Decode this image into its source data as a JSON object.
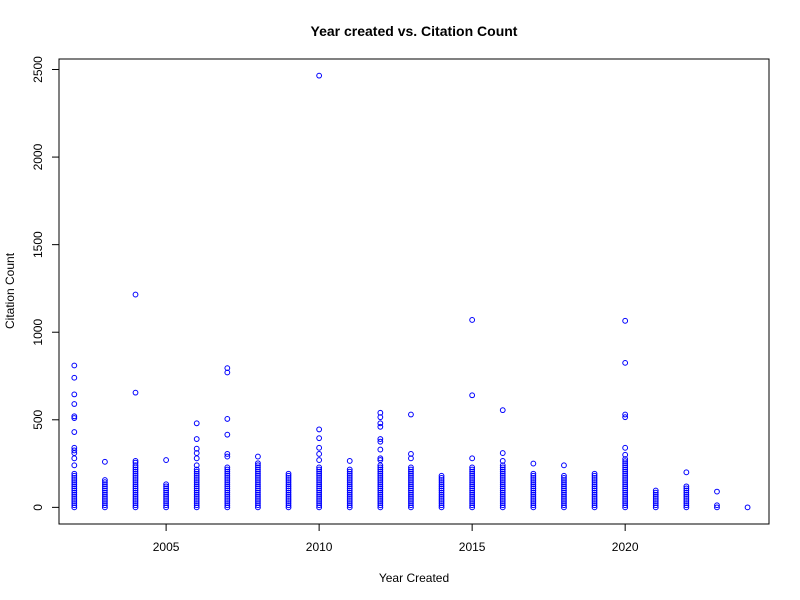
{
  "chart_data": {
    "type": "scatter",
    "title": "Year created vs. Citation Count",
    "xlabel": "Year Created",
    "ylabel": "Citation Count",
    "xlim": [
      2001.5,
      2024.7
    ],
    "ylim": [
      -95,
      2560
    ],
    "xticks": [
      2005,
      2010,
      2015,
      2020
    ],
    "yticks": [
      0,
      500,
      1000,
      1500,
      2000,
      2500
    ],
    "point_color": "#0000ff",
    "marker": "open-circle",
    "grid": false,
    "legend": "none",
    "columns": [
      {
        "x": 2002,
        "max": 200,
        "outliers": [
          810,
          740,
          645,
          590,
          520,
          510,
          430,
          340,
          325,
          310,
          280,
          240
        ]
      },
      {
        "x": 2003,
        "max": 160,
        "outliers": [
          260
        ]
      },
      {
        "x": 2004,
        "max": 240,
        "outliers": [
          1215,
          655,
          265,
          255
        ]
      },
      {
        "x": 2005,
        "max": 140,
        "outliers": [
          270
        ]
      },
      {
        "x": 2006,
        "max": 220,
        "outliers": [
          480,
          390,
          335,
          310,
          280,
          240
        ]
      },
      {
        "x": 2007,
        "max": 230,
        "outliers": [
          795,
          770,
          505,
          415,
          305,
          290
        ]
      },
      {
        "x": 2008,
        "max": 260,
        "outliers": [
          290
        ]
      },
      {
        "x": 2009,
        "max": 200,
        "outliers": []
      },
      {
        "x": 2010,
        "max": 230,
        "outliers": [
          2465,
          445,
          395,
          340,
          305,
          270
        ]
      },
      {
        "x": 2011,
        "max": 220,
        "outliers": [
          265
        ]
      },
      {
        "x": 2012,
        "max": 250,
        "outliers": [
          540,
          515,
          480,
          460,
          390,
          375,
          330,
          280,
          270
        ]
      },
      {
        "x": 2013,
        "max": 230,
        "outliers": [
          530,
          305,
          280
        ]
      },
      {
        "x": 2014,
        "max": 180,
        "outliers": []
      },
      {
        "x": 2015,
        "max": 230,
        "outliers": [
          1070,
          640,
          280
        ]
      },
      {
        "x": 2016,
        "max": 240,
        "outliers": [
          555,
          310,
          265
        ]
      },
      {
        "x": 2017,
        "max": 200,
        "outliers": [
          250
        ]
      },
      {
        "x": 2018,
        "max": 180,
        "outliers": [
          240
        ]
      },
      {
        "x": 2019,
        "max": 200,
        "outliers": []
      },
      {
        "x": 2020,
        "max": 280,
        "outliers": [
          1065,
          825,
          530,
          515,
          340,
          300
        ]
      },
      {
        "x": 2021,
        "max": 100,
        "outliers": []
      },
      {
        "x": 2022,
        "max": 120,
        "outliers": [
          200
        ]
      },
      {
        "x": 2023,
        "max": 20,
        "outliers": [
          90
        ]
      },
      {
        "x": 2024,
        "max": 6,
        "outliers": []
      }
    ]
  }
}
